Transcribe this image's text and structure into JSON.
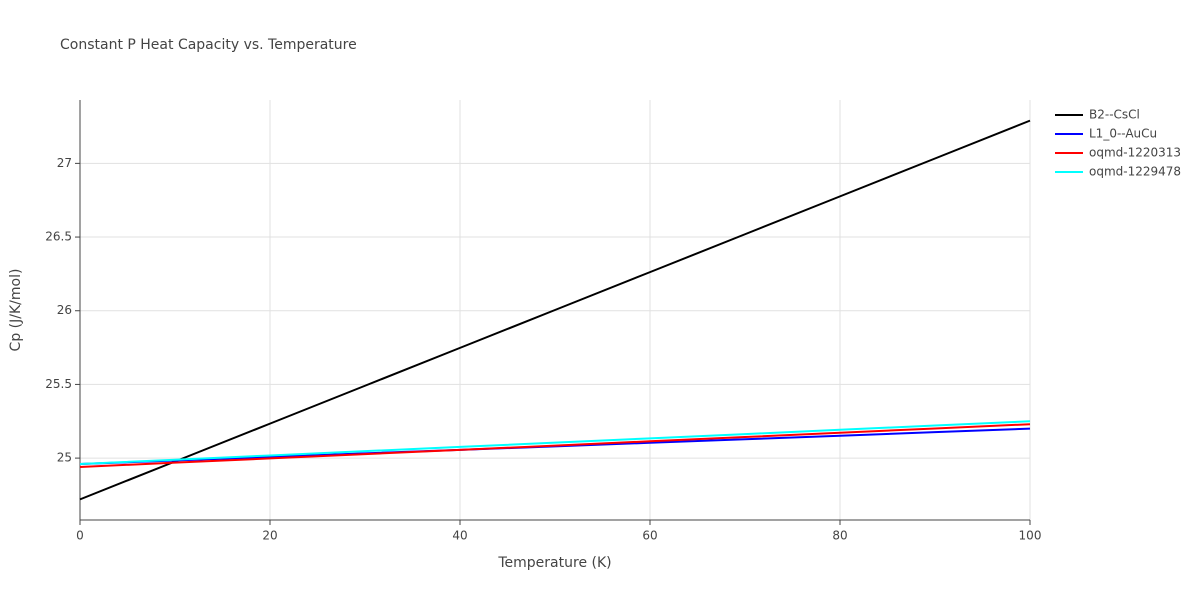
{
  "chart_data": {
    "type": "line",
    "title": "Constant P Heat Capacity vs. Temperature",
    "x_label": "Temperature (K)",
    "y_label": "Cp (J/K/mol)",
    "x": [
      0,
      10,
      20,
      30,
      40,
      50,
      60,
      70,
      80,
      90,
      100
    ],
    "series": [
      {
        "name": "B2--CsCl",
        "color": "#000000",
        "values": [
          24.72,
          24.977,
          25.234,
          25.491,
          25.748,
          26.005,
          26.262,
          26.519,
          26.776,
          27.033,
          27.29
        ]
      },
      {
        "name": "L1_0--AuCu",
        "color": "#0000ff",
        "values": [
          24.96,
          24.984,
          25.008,
          25.032,
          25.056,
          25.08,
          25.104,
          25.128,
          25.152,
          25.176,
          25.2
        ]
      },
      {
        "name": "oqmd-1220313",
        "color": "#ff0000",
        "values": [
          24.94,
          24.969,
          24.998,
          25.027,
          25.056,
          25.085,
          25.114,
          25.143,
          25.172,
          25.201,
          25.23
        ]
      },
      {
        "name": "oqmd-1229478",
        "color": "#00ffff",
        "values": [
          24.96,
          24.989,
          25.018,
          25.047,
          25.076,
          25.105,
          25.134,
          25.163,
          25.192,
          25.221,
          25.25
        ]
      }
    ],
    "xlim": [
      0,
      100
    ],
    "xticks": [
      0,
      20,
      40,
      60,
      80,
      100
    ],
    "ylim": [
      24.58,
      27.43
    ],
    "yticks": [
      25,
      25.5,
      26,
      26.5,
      27
    ],
    "grid": true,
    "legend": "right"
  }
}
